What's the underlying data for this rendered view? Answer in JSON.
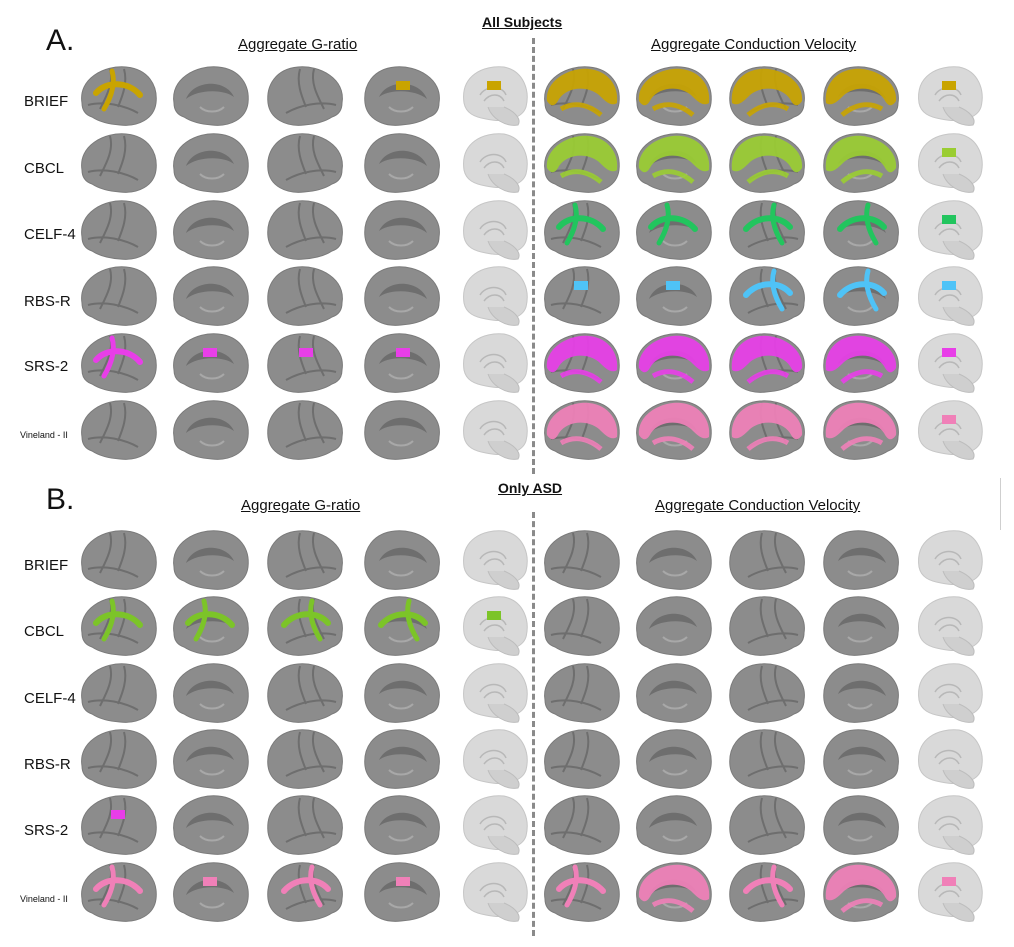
{
  "panels": [
    {
      "letter": "A.",
      "title": "All Subjects",
      "left_header": "Aggregate G-ratio",
      "right_header": "Aggregate Conduction Velocity",
      "rows": [
        {
          "label": "BRIEF",
          "color": "#c9a400"
        },
        {
          "label": "CBCL",
          "color": "#9acd32"
        },
        {
          "label": "CELF-4",
          "color": "#22c55e"
        },
        {
          "label": "RBS-R",
          "color": "#4fc3f7"
        },
        {
          "label": "SRS-2",
          "color": "#e83ee8"
        },
        {
          "label": "Vineland - II",
          "color": "#f080b8"
        }
      ]
    },
    {
      "letter": "B.",
      "title": "Only ASD",
      "left_header": "Aggregate G-ratio",
      "right_header": "Aggregate Conduction Velocity",
      "rows": [
        {
          "label": "BRIEF",
          "color": "#c9a400"
        },
        {
          "label": "CBCL",
          "color": "#7cc428"
        },
        {
          "label": "CELF-4",
          "color": "#22c55e"
        },
        {
          "label": "RBS-R",
          "color": "#4fc3f7"
        },
        {
          "label": "SRS-2",
          "color": "#e83ee8"
        },
        {
          "label": "Vineland - II",
          "color": "#f080b8"
        }
      ]
    }
  ],
  "colors": {
    "brain": "#8c8c8c",
    "brain_dark": "#6e6e6e",
    "brain_light": "#d9d9d9",
    "divider": "#8a8a8a"
  }
}
